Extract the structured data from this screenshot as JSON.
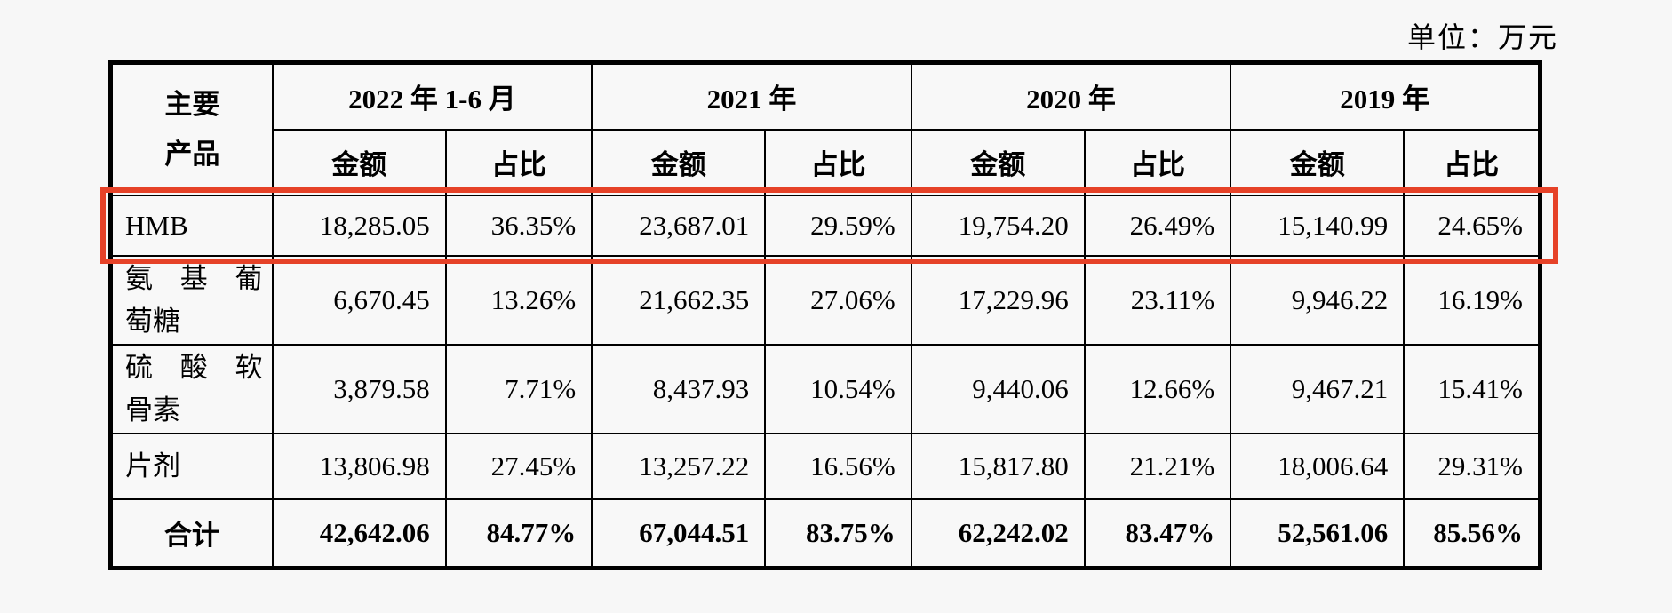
{
  "unit_label": "单位：万元",
  "colors": {
    "highlight": "#e64228"
  },
  "table": {
    "product_header_lines": [
      "主要",
      "产品"
    ],
    "periods": [
      {
        "label": "2022 年 1-6 月",
        "amount_label": "金额",
        "ratio_label": "占比"
      },
      {
        "label": "2021 年",
        "amount_label": "金额",
        "ratio_label": "占比"
      },
      {
        "label": "2020 年",
        "amount_label": "金额",
        "ratio_label": "占比"
      },
      {
        "label": "2019 年",
        "amount_label": "金额",
        "ratio_label": "占比"
      }
    ],
    "rows": [
      {
        "name_lines": [
          "HMB"
        ],
        "highlighted": true,
        "values": [
          "18,285.05",
          "36.35%",
          "23,687.01",
          "29.59%",
          "19,754.20",
          "26.49%",
          "15,140.99",
          "24.65%"
        ]
      },
      {
        "name_lines": [
          "氨 基 葡",
          "萄糖"
        ],
        "highlighted": false,
        "values": [
          "6,670.45",
          "13.26%",
          "21,662.35",
          "27.06%",
          "17,229.96",
          "23.11%",
          "9,946.22",
          "16.19%"
        ]
      },
      {
        "name_lines": [
          "硫 酸 软",
          "骨素"
        ],
        "highlighted": false,
        "values": [
          "3,879.58",
          "7.71%",
          "8,437.93",
          "10.54%",
          "9,440.06",
          "12.66%",
          "9,467.21",
          "15.41%"
        ]
      },
      {
        "name_lines": [
          "片剂"
        ],
        "highlighted": false,
        "values": [
          "13,806.98",
          "27.45%",
          "13,257.22",
          "16.56%",
          "15,817.80",
          "21.21%",
          "18,006.64",
          "29.31%"
        ]
      }
    ],
    "total_row": {
      "label": "合计",
      "values": [
        "42,642.06",
        "84.77%",
        "67,044.51",
        "83.75%",
        "62,242.02",
        "83.47%",
        "52,561.06",
        "85.56%"
      ]
    }
  }
}
